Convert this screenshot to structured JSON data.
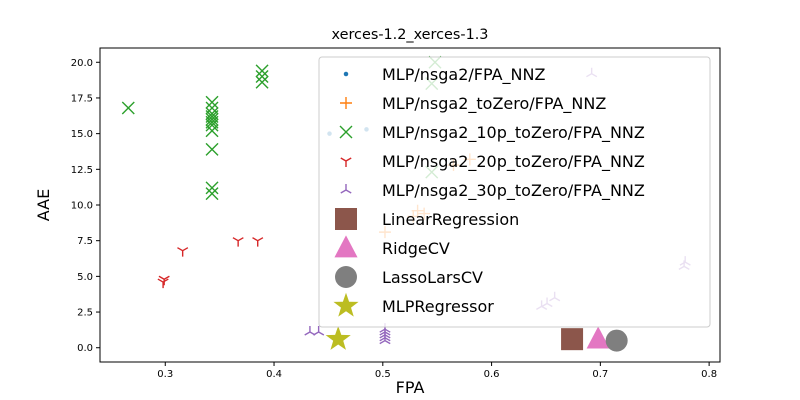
{
  "chart_data": {
    "type": "scatter",
    "title": "xerces-1.2_xerces-1.3",
    "xlabel": "FPA",
    "ylabel": "AAE",
    "xlim": [
      0.24,
      0.81
    ],
    "ylim": [
      -1.0,
      21.0
    ],
    "xticks": [
      0.3,
      0.4,
      0.5,
      0.6,
      0.7,
      0.8
    ],
    "xtick_labels": [
      "0.3",
      "0.4",
      "0.5",
      "0.6",
      "0.7",
      "0.8"
    ],
    "yticks": [
      0.0,
      2.5,
      5.0,
      7.5,
      10.0,
      12.5,
      15.0,
      17.5,
      20.0
    ],
    "ytick_labels": [
      "0.0",
      "2.5",
      "5.0",
      "7.5",
      "10.0",
      "12.5",
      "15.0",
      "17.5",
      "20.0"
    ],
    "grid": false,
    "legend_position": "upper right",
    "series": [
      {
        "name": "MLP/nsga2/FPA_NNZ",
        "marker": "dot",
        "color": "#1f77b4",
        "points": [
          [
            0.451,
            15.0
          ],
          [
            0.485,
            15.3
          ]
        ]
      },
      {
        "name": "MLP/nsga2_toZero/FPA_NNZ",
        "marker": "plus",
        "color": "#ff7f0e",
        "points": [
          [
            0.502,
            8.1
          ],
          [
            0.528,
            9.2
          ],
          [
            0.532,
            9.6
          ],
          [
            0.538,
            9.4
          ],
          [
            0.565,
            12.8
          ],
          [
            0.58,
            13.2
          ]
        ]
      },
      {
        "name": "MLP/nsga2_10p_toZero/FPA_NNZ",
        "marker": "x",
        "color": "#2ca02c",
        "points": [
          [
            0.266,
            16.8
          ],
          [
            0.343,
            10.8
          ],
          [
            0.343,
            11.2
          ],
          [
            0.343,
            13.9
          ],
          [
            0.343,
            15.2
          ],
          [
            0.343,
            15.6
          ],
          [
            0.343,
            16.0
          ],
          [
            0.343,
            16.4
          ],
          [
            0.343,
            16.8
          ],
          [
            0.343,
            17.2
          ],
          [
            0.343,
            15.8
          ],
          [
            0.343,
            16.2
          ],
          [
            0.389,
            18.6
          ],
          [
            0.389,
            19.0
          ],
          [
            0.389,
            19.4
          ],
          [
            0.545,
            12.3
          ],
          [
            0.545,
            18.5
          ],
          [
            0.548,
            20.0
          ]
        ]
      },
      {
        "name": "MLP/nsga2_20p_toZero/FPA_NNZ",
        "marker": "tri_down",
        "color": "#d62728",
        "points": [
          [
            0.298,
            4.6
          ],
          [
            0.299,
            4.8
          ],
          [
            0.316,
            6.8
          ],
          [
            0.367,
            7.5
          ],
          [
            0.385,
            7.5
          ]
        ]
      },
      {
        "name": "MLP/nsga2_30p_toZero/FPA_NNZ",
        "marker": "tri_up",
        "color": "#9467bd",
        "points": [
          [
            0.433,
            1.1
          ],
          [
            0.441,
            1.1
          ],
          [
            0.502,
            0.5
          ],
          [
            0.502,
            0.7
          ],
          [
            0.502,
            0.9
          ],
          [
            0.502,
            1.1
          ],
          [
            0.502,
            1.3
          ],
          [
            0.646,
            2.9
          ],
          [
            0.651,
            3.1
          ],
          [
            0.658,
            3.5
          ],
          [
            0.692,
            19.2
          ],
          [
            0.777,
            5.7
          ],
          [
            0.778,
            6.0
          ]
        ]
      },
      {
        "name": "LinearRegression",
        "marker": "square",
        "color": "#8c564b",
        "points": [
          [
            0.674,
            0.6
          ]
        ]
      },
      {
        "name": "RidgeCV",
        "marker": "triangle",
        "color": "#e377c2",
        "points": [
          [
            0.698,
            0.6
          ]
        ]
      },
      {
        "name": "LassoLarsCV",
        "marker": "circle",
        "color": "#7f7f7f",
        "points": [
          [
            0.715,
            0.5
          ]
        ]
      },
      {
        "name": "MLPRegressor",
        "marker": "star",
        "color": "#bcbd22",
        "points": [
          [
            0.459,
            0.6
          ]
        ]
      }
    ]
  }
}
